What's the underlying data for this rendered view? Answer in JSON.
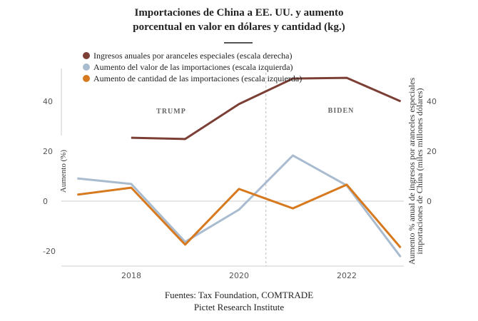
{
  "title_line1": "Importaciones de China a EE. UU. y aumento",
  "title_line2": "porcentual en valor en dólares y cantidad (kg.)",
  "source_line1": "Fuentes: Tax Foundation, COMTRADE",
  "source_line2": "Pictet Research Institute",
  "chart_data": {
    "type": "line",
    "x": [
      2017,
      2018,
      2019,
      2020,
      2021,
      2022,
      2023
    ],
    "xticks": [
      "2018",
      "2020",
      "2022"
    ],
    "yticks_left": [
      "40",
      "20",
      "0",
      "-20"
    ],
    "yticks_right": [
      "40",
      "20",
      "0"
    ],
    "ylabel_left": "Aumento (%)",
    "ylabel_right_line1": "Aumento % anual de ingresos por aranceles especiales",
    "ylabel_right_line2": "importaciones de China (miles millones dólares)",
    "ylim": [
      -25,
      55
    ],
    "annotations": [
      "TRUMP",
      "BIDEN"
    ],
    "divider_x": 2020.5,
    "legend_position": "top-left",
    "series": [
      {
        "name": "Ingresos anuales por aranceles especiales (escala derecha)",
        "color": "#7b3f35",
        "values": [
          null,
          25.4,
          24.9,
          38.9,
          49.1,
          49.4,
          40
        ]
      },
      {
        "name": "Aumento del valor de las importaciones (escala izquierda)",
        "color": "#a9bccf",
        "values": [
          9.1,
          6.9,
          -16.3,
          -3.4,
          18.3,
          6.3,
          -22.3
        ]
      },
      {
        "name": "Aumento de cantidad de las importaciones (escala izquierda)",
        "color": "#d6791f",
        "values": [
          2.6,
          5.4,
          -17.4,
          4.9,
          -2.9,
          6.6,
          -18.6
        ]
      }
    ]
  }
}
